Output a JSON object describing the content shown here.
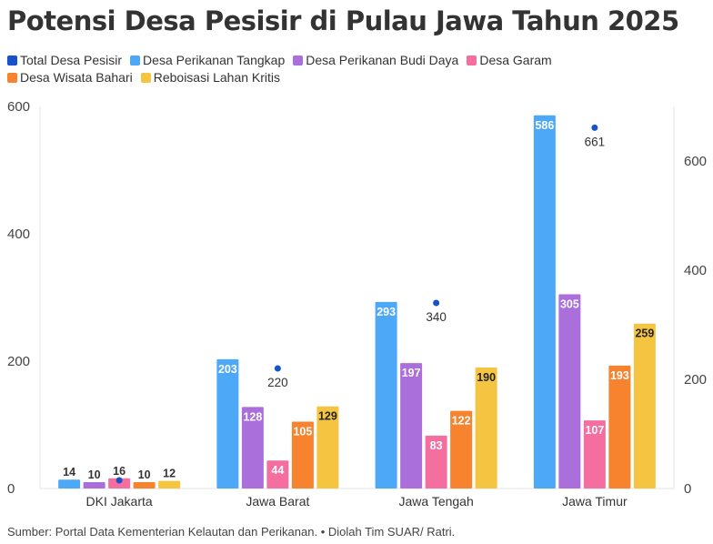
{
  "title": "Potensi Desa Pesisir di Pulau Jawa Tahun 2025",
  "source": "Sumber: Portal Data Kementerian Kelautan dan Perikanan. • Diolah Tim SUAR/ Ratri.",
  "chart_data": {
    "type": "bar",
    "categories": [
      "DKI Jakarta",
      "Jawa Barat",
      "Jawa Tengah",
      "Jawa Timur"
    ],
    "series": [
      {
        "name": "Desa Perikanan Tangkap",
        "color": "#4da9f7",
        "values": [
          14,
          203,
          293,
          586
        ]
      },
      {
        "name": "Desa Perikanan Budi Daya",
        "color": "#ab6fdc",
        "values": [
          10,
          128,
          197,
          305
        ]
      },
      {
        "name": "Desa Garam",
        "color": "#f46ea0",
        "values": [
          16,
          44,
          83,
          107
        ]
      },
      {
        "name": "Desa Wisata Bahari",
        "color": "#f7832e",
        "values": [
          10,
          105,
          122,
          193
        ]
      },
      {
        "name": "Reboisasi Lahan Kritis",
        "color": "#f5c542",
        "values": [
          12,
          129,
          190,
          259
        ]
      }
    ],
    "total": {
      "name": "Total Desa Pesisir",
      "color": "#1652c9",
      "values": [
        null,
        220,
        340,
        661
      ],
      "axis": "right"
    },
    "legend_order": [
      "Total Desa Pesisir",
      "Desa Perikanan Tangkap",
      "Desa Perikanan Budi Daya",
      "Desa Garam",
      "Desa Wisata Bahari",
      "Reboisasi Lahan Kritis"
    ],
    "legend_position": "top-left",
    "ylim_left": [
      0,
      600
    ],
    "yticks_left": [
      0,
      200,
      400,
      600
    ],
    "ylim_right": [
      0,
      700
    ],
    "yticks_right": [
      0,
      200,
      400,
      600
    ],
    "grid": false
  }
}
